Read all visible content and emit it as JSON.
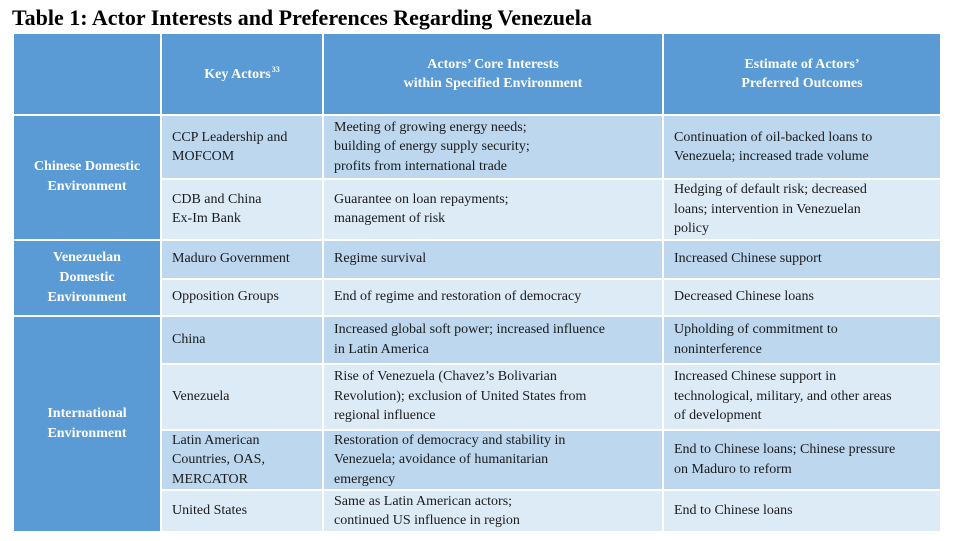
{
  "title": "Table 1: Actor Interests and Preferences Regarding Venezuela",
  "header": {
    "key_actors_label": "Key Actors",
    "key_actors_footnote": "33",
    "core_interests_label": [
      "Actors’ Core Interests",
      "within Specified Environment"
    ],
    "preferred_outcomes_label": [
      "Estimate of Actors’",
      "Preferred Outcomes"
    ]
  },
  "groups": [
    {
      "label": [
        "Chinese Domestic",
        "Environment"
      ],
      "rows": [
        {
          "actor": [
            "CCP Leadership and",
            "MOFCOM"
          ],
          "interests": [
            "Meeting of growing energy needs;",
            "building of energy supply security;",
            "profits from international trade"
          ],
          "outcomes": [
            "Continuation of oil-backed loans to",
            "Venezuela; increased trade volume"
          ]
        },
        {
          "actor": [
            "CDB and China",
            "Ex-Im Bank"
          ],
          "interests": [
            "Guarantee on loan repayments;",
            "management of risk"
          ],
          "outcomes": [
            "Hedging of default risk; decreased",
            "loans; intervention in Venezuelan",
            "policy"
          ]
        }
      ]
    },
    {
      "label": [
        "Venezuelan",
        "Domestic",
        "Environment"
      ],
      "rows": [
        {
          "actor": [
            "Maduro Government"
          ],
          "interests": [
            "Regime survival"
          ],
          "outcomes": [
            "Increased Chinese support"
          ]
        },
        {
          "actor": [
            "Opposition Groups"
          ],
          "interests": [
            "End of regime and restoration of democracy"
          ],
          "outcomes": [
            "Decreased Chinese loans"
          ]
        }
      ]
    },
    {
      "label": [
        "International",
        "Environment"
      ],
      "rows": [
        {
          "actor": [
            "China"
          ],
          "interests": [
            "Increased global soft power; increased influence",
            "in Latin America"
          ],
          "outcomes": [
            "Upholding of commitment to",
            "noninterference"
          ]
        },
        {
          "actor": [
            "Venezuela"
          ],
          "interests": [
            "Rise of Venezuela (Chavez’s Bolivarian",
            "Revolution); exclusion of United States from",
            "regional influence"
          ],
          "outcomes": [
            "Increased Chinese support in",
            "technological, military, and other areas",
            "of development"
          ]
        },
        {
          "actor": [
            "Latin American",
            "Countries, OAS,",
            "MERCATOR"
          ],
          "interests": [
            "Restoration of democracy and stability in",
            "Venezuela; avoidance of humanitarian",
            "emergency"
          ],
          "outcomes": [
            "End to Chinese loans; Chinese pressure",
            "on Maduro to reform"
          ]
        },
        {
          "actor": [
            "United States"
          ],
          "interests": [
            "Same as Latin American actors;",
            "continued US influence in region"
          ],
          "outcomes": [
            "End to Chinese loans"
          ]
        }
      ]
    }
  ],
  "colors": {
    "header_bg": "#5b9bd5",
    "row_dark": "#bdd7ee",
    "row_light": "#ddebf7",
    "border": "#ffffff"
  }
}
